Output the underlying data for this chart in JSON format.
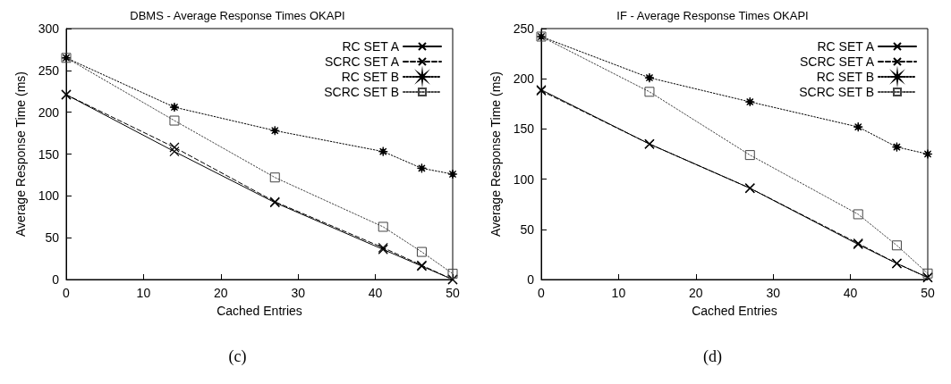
{
  "chart_data": [
    {
      "type": "line",
      "title": "DBMS - Average Response Times OKAPI",
      "xlabel": "Cached Entries",
      "ylabel": "Average Response Time (ms)",
      "annotations": [
        "(c)"
      ],
      "x": [
        0,
        14,
        27,
        41,
        46,
        50
      ],
      "xlim": [
        0,
        50
      ],
      "xticks": [
        0,
        10,
        20,
        30,
        40,
        50
      ],
      "ylim": [
        0,
        300
      ],
      "yticks": [
        0,
        50,
        100,
        150,
        200,
        250,
        300
      ],
      "legend": "top right",
      "grid": false,
      "series": [
        {
          "name": "RC SET A",
          "color": "#000000",
          "marker": "cross",
          "line_style": "solid",
          "values": [
            221,
            153,
            92,
            36,
            16,
            0
          ]
        },
        {
          "name": "SCRC SET A",
          "color": "#000000",
          "marker": "cross",
          "line_style": "dashed",
          "values": [
            221,
            158,
            93,
            38,
            17,
            0
          ]
        },
        {
          "name": "RC SET B",
          "color": "#000000",
          "marker": "star",
          "line_style": "dotted",
          "values": [
            265,
            206,
            178,
            153,
            133,
            126
          ]
        },
        {
          "name": "SCRC SET B",
          "color": "#444444",
          "marker": "square",
          "line_style": "dotted",
          "values": [
            265,
            190,
            122,
            63,
            33,
            7
          ]
        }
      ]
    },
    {
      "type": "line",
      "title": "IF - Average Response Times OKAPI",
      "xlabel": "Cached Entries",
      "ylabel": "Average Response Time (ms)",
      "annotations": [
        "(d)"
      ],
      "x": [
        0,
        14,
        27,
        41,
        46,
        50
      ],
      "xlim": [
        0,
        50
      ],
      "xticks": [
        0,
        10,
        20,
        30,
        40,
        50
      ],
      "ylim": [
        0,
        250
      ],
      "yticks": [
        0,
        50,
        100,
        150,
        200,
        250
      ],
      "legend": "top right",
      "grid": false,
      "series": [
        {
          "name": "RC SET A",
          "color": "#000000",
          "marker": "cross",
          "line_style": "solid",
          "values": [
            189,
            135,
            91,
            35,
            16,
            2
          ]
        },
        {
          "name": "SCRC SET A",
          "color": "#000000",
          "marker": "cross",
          "line_style": "dashed",
          "values": [
            188,
            135,
            91,
            36,
            16,
            2
          ]
        },
        {
          "name": "RC SET B",
          "color": "#000000",
          "marker": "star",
          "line_style": "dotted",
          "values": [
            242,
            201,
            177,
            152,
            132,
            125
          ]
        },
        {
          "name": "SCRC SET B",
          "color": "#444444",
          "marker": "square",
          "line_style": "dotted",
          "values": [
            242,
            187,
            124,
            65,
            34,
            6
          ]
        }
      ]
    }
  ]
}
